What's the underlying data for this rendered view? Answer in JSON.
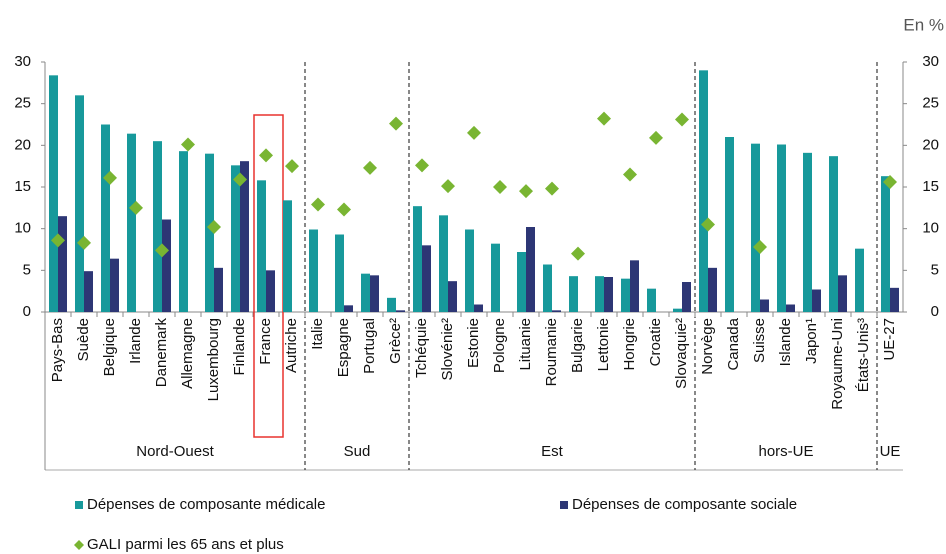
{
  "chart_data": {
    "type": "bar",
    "unit_label": "En %",
    "groups": [
      {
        "name": "Nord-Ouest",
        "categories": [
          "Pays-Bas",
          "Suède",
          "Belgique",
          "Irlande",
          "Danemark",
          "Allemagne",
          "Luxembourg",
          "Finlande",
          "France",
          "Autriche"
        ]
      },
      {
        "name": "Sud",
        "categories": [
          "Italie",
          "Espagne",
          "Portugal",
          "Grèce²"
        ]
      },
      {
        "name": "Est",
        "categories": [
          "Tchéquie",
          "Slovénie²",
          "Estonie",
          "Pologne",
          "Lituanie",
          "Roumanie",
          "Bulgarie",
          "Lettonie",
          "Hongrie",
          "Croatie",
          "Slovaquie²"
        ]
      },
      {
        "name": "hors-UE",
        "categories": [
          "Norvège",
          "Canada",
          "Suisse",
          "Islande",
          "Japon¹",
          "Royaume-Uni",
          "États-Unis³"
        ]
      },
      {
        "name": "UE",
        "categories": [
          "UE-27"
        ]
      }
    ],
    "highlight": "France",
    "series": [
      {
        "name": "Dépenses de composante médicale",
        "color": "#17999b",
        "kind": "bar",
        "values": [
          28.4,
          26,
          22.5,
          21.4,
          20.5,
          19.3,
          19,
          17.6,
          15.8,
          13.4,
          9.9,
          9.3,
          4.6,
          1.7,
          12.7,
          11.6,
          9.9,
          8.2,
          7.2,
          5.7,
          4.3,
          4.3,
          4,
          2.8,
          0.4,
          29,
          21,
          20.2,
          20.1,
          19.1,
          18.7,
          7.6,
          16.3
        ]
      },
      {
        "name": "Dépenses de composante sociale",
        "color": "#2d3675",
        "kind": "bar",
        "values": [
          11.5,
          4.9,
          6.4,
          null,
          11.1,
          null,
          5.3,
          18.1,
          5,
          null,
          null,
          0.8,
          4.4,
          0.2,
          8,
          3.7,
          0.9,
          null,
          10.2,
          0.2,
          null,
          4.2,
          6.2,
          null,
          3.6,
          5.3,
          null,
          1.5,
          0.9,
          2.7,
          4.4,
          null,
          2.9
        ]
      },
      {
        "name": "GALI parmi les 65 ans et plus",
        "color": "#79b532",
        "kind": "diamond",
        "axis": "y2",
        "values": [
          8.6,
          8.3,
          16.1,
          12.5,
          7.4,
          20.1,
          10.2,
          15.9,
          18.8,
          17.5,
          12.9,
          12.3,
          17.3,
          22.6,
          17.6,
          15.1,
          21.5,
          15,
          14.5,
          14.8,
          7,
          23.2,
          16.5,
          20.9,
          23.1,
          10.5,
          null,
          7.8,
          null,
          null,
          null,
          null,
          15.6
        ]
      }
    ],
    "ylim": [
      0,
      30
    ],
    "yticks": [
      0,
      5,
      10,
      15,
      20,
      25,
      30
    ],
    "y2lim": [
      0,
      30
    ],
    "y2ticks": [
      0,
      5,
      10,
      15,
      20,
      25,
      30
    ]
  }
}
